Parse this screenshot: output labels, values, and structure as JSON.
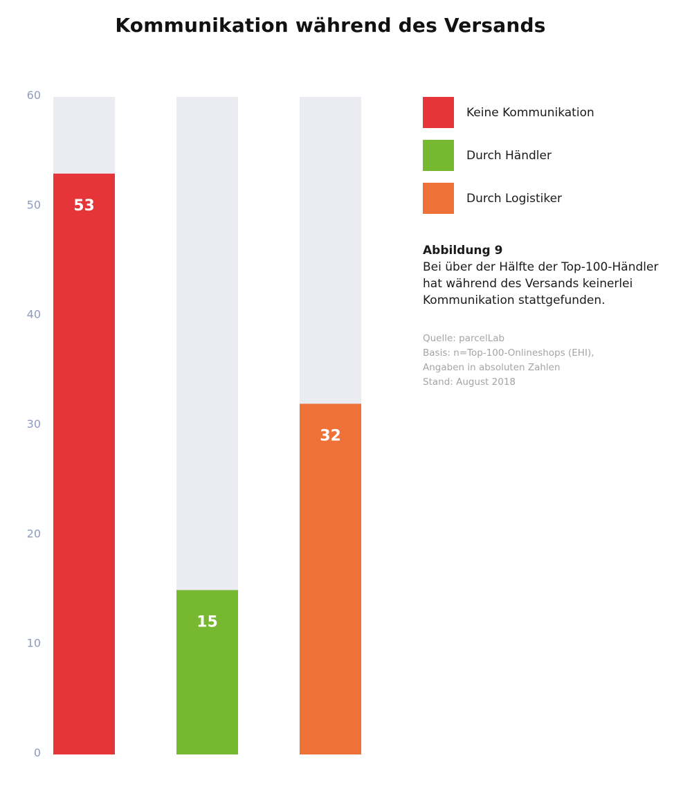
{
  "chart_data": {
    "type": "bar",
    "title": "Kommunikation während des Versands",
    "categories": [
      "Keine Kommunikation",
      "Durch Händler",
      "Durch Logistiker"
    ],
    "values": [
      53,
      15,
      32
    ],
    "colors": [
      "#e63539",
      "#76b82f",
      "#ee7238"
    ],
    "background_color": "#ebecf2",
    "ylim": [
      0,
      60
    ],
    "yticks": [
      0,
      10,
      20,
      30,
      40,
      50,
      60
    ],
    "xlabel": "",
    "ylabel": "",
    "grid": false,
    "legend": "right",
    "data_labels": true
  },
  "legend": {
    "items": [
      {
        "label": "Keine Kommunikation",
        "color": "#e63539"
      },
      {
        "label": "Durch Händler",
        "color": "#76b82f"
      },
      {
        "label": "Durch Logistiker",
        "color": "#ee7238"
      }
    ]
  },
  "caption": {
    "heading": "Abbildung 9",
    "lines": [
      "Bei über der Hälfte der Top-100-Händler",
      "hat während des Versands keinerlei",
      "Kommunikation stattgefunden."
    ]
  },
  "source": {
    "lines": [
      "Quelle: parcelLab",
      "Basis: n=Top-100-Onlineshops (EHI),",
      "Angaben in absoluten Zahlen",
      "Stand: August 2018"
    ]
  }
}
